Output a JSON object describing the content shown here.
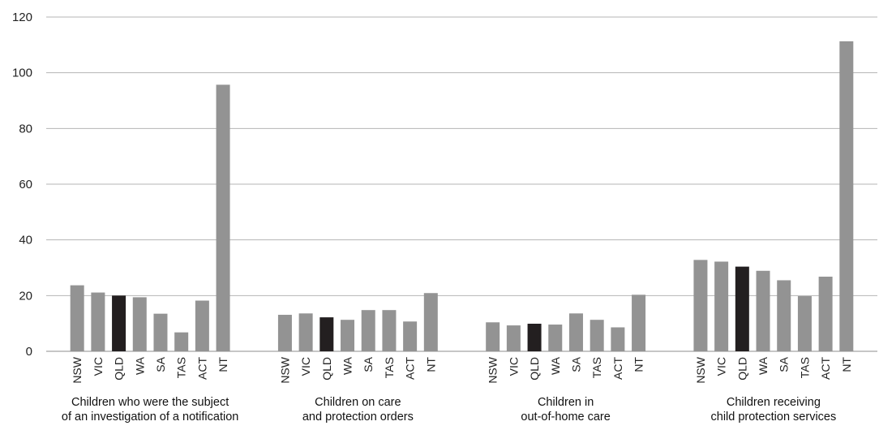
{
  "chart_data": {
    "type": "bar",
    "title": "",
    "xlabel": "",
    "ylabel": "",
    "ylim": [
      0,
      120
    ],
    "yticks": [
      0,
      20,
      40,
      60,
      80,
      100,
      120
    ],
    "grid": true,
    "legend": "none",
    "categories": [
      "NSW",
      "VIC",
      "QLD",
      "WA",
      "SA",
      "TAS",
      "ACT",
      "NT"
    ],
    "highlight_category": "QLD",
    "colors": {
      "bar": "#939393",
      "highlight": "#231f20",
      "grid": "#b5b5b5",
      "axis": "#8c8c8c"
    },
    "groups": [
      {
        "label_lines": [
          "Children who were the subject",
          "of an investigation of a notification"
        ],
        "values": [
          23.7,
          21.1,
          20.0,
          19.4,
          13.5,
          6.8,
          18.2,
          95.7
        ]
      },
      {
        "label_lines": [
          "Children on care",
          "and protection orders"
        ],
        "values": [
          13.1,
          13.6,
          12.2,
          11.3,
          14.8,
          14.8,
          10.7,
          20.9
        ]
      },
      {
        "label_lines": [
          "Children in",
          "out-of-home care"
        ],
        "values": [
          10.4,
          9.3,
          9.9,
          9.6,
          13.6,
          11.3,
          8.6,
          20.3
        ]
      },
      {
        "label_lines": [
          "Children receiving",
          "child protection services"
        ],
        "values": [
          32.8,
          32.2,
          30.4,
          28.9,
          25.5,
          19.8,
          26.8,
          111.3
        ]
      }
    ]
  }
}
